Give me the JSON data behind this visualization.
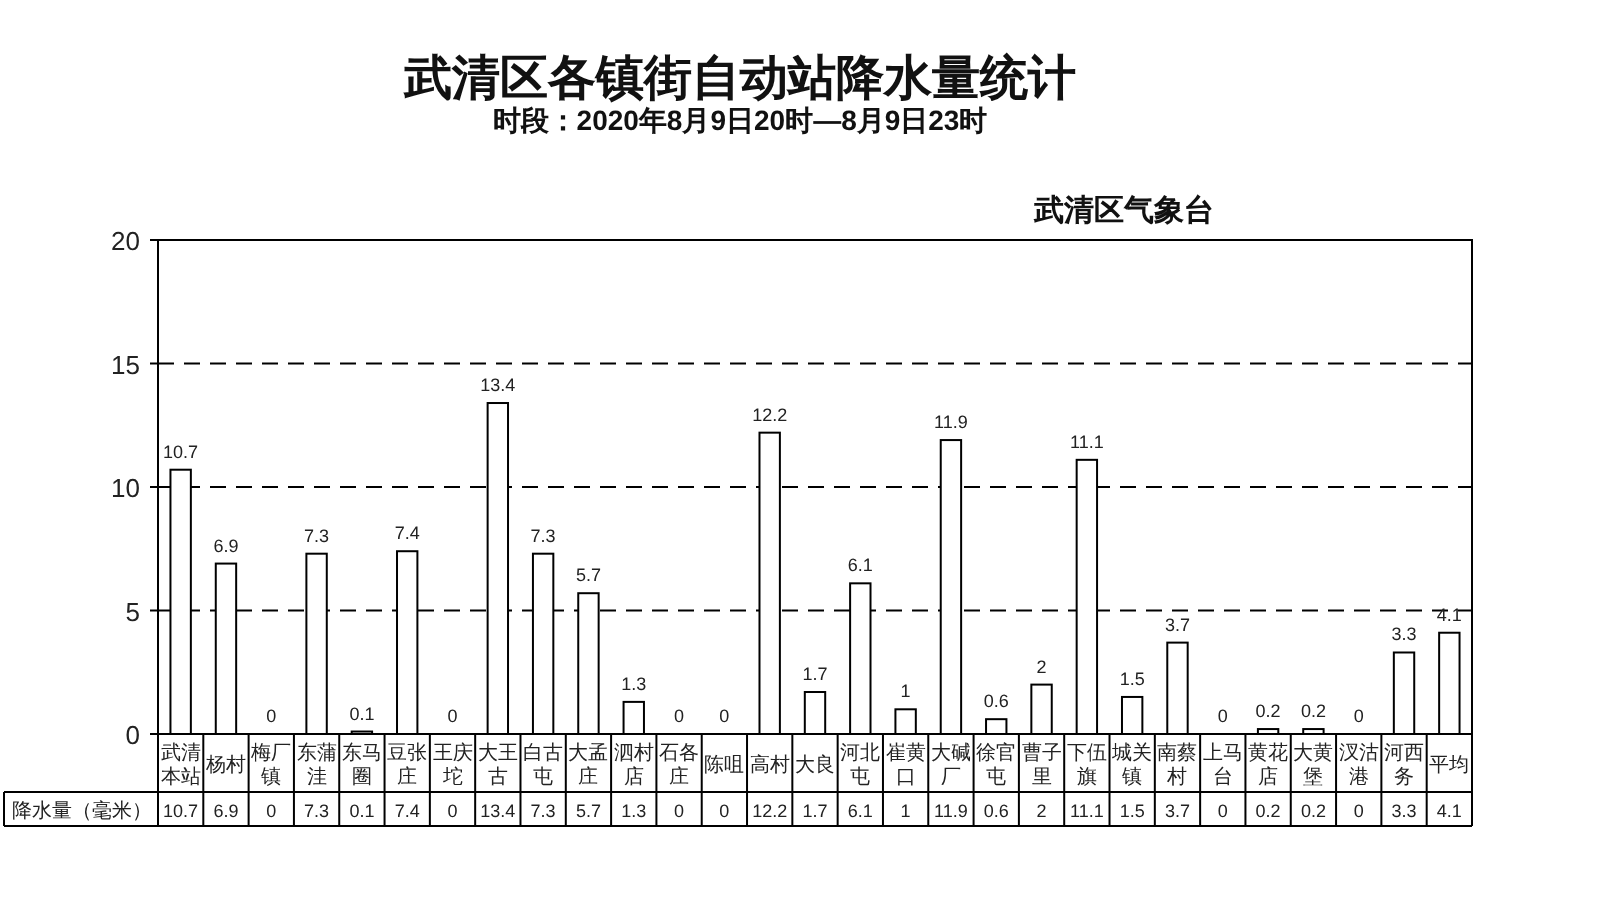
{
  "chart_data": {
    "type": "bar",
    "title": "武清区各镇街自动站降水量统计",
    "subtitle": "时段：2020年8月9日20时—8月9日23时",
    "annotations": [
      "武清区气象台"
    ],
    "categories": [
      "武清本站",
      "杨村",
      "梅厂镇",
      "东蒲洼",
      "东马圈",
      "豆张庄",
      "王庆坨",
      "大王古",
      "白古屯",
      "大孟庄",
      "泗村店",
      "石各庄",
      "陈咀",
      "高村",
      "大良",
      "河北屯",
      "崔黄口",
      "大碱厂",
      "徐官屯",
      "曹子里",
      "下伍旗",
      "城关镇",
      "南蔡村",
      "上马台",
      "黄花店",
      "大黄堡",
      "汊沽港",
      "河西务",
      "平均"
    ],
    "series": [
      {
        "name": "降水量（毫米）",
        "color": "#ffffff",
        "values": [
          10.7,
          6.9,
          0,
          7.3,
          0.1,
          7.4,
          0,
          13.4,
          7.3,
          5.7,
          1.3,
          0,
          0,
          12.2,
          1.7,
          6.1,
          1,
          11.9,
          0.6,
          2,
          11.1,
          1.5,
          3.7,
          0,
          0.2,
          0.2,
          0,
          3.3,
          4.1
        ],
        "value_labels": [
          "10.7",
          "6.9",
          "0",
          "7.3",
          "0.1",
          "7.4",
          "0",
          "13.4",
          "7.3",
          "5.7",
          "1.3",
          "0",
          "0",
          "12.2",
          "1.7",
          "6.1",
          "1",
          "11.9",
          "0.6",
          "2",
          "11.1",
          "1.5",
          "3.7",
          "0",
          "0.2",
          "0.2",
          "0",
          "3.3",
          "4.1"
        ]
      }
    ],
    "ylim": [
      0,
      20
    ],
    "yticks": [
      0,
      5,
      10,
      15,
      20
    ],
    "grid": "y",
    "data_labels": true
  }
}
